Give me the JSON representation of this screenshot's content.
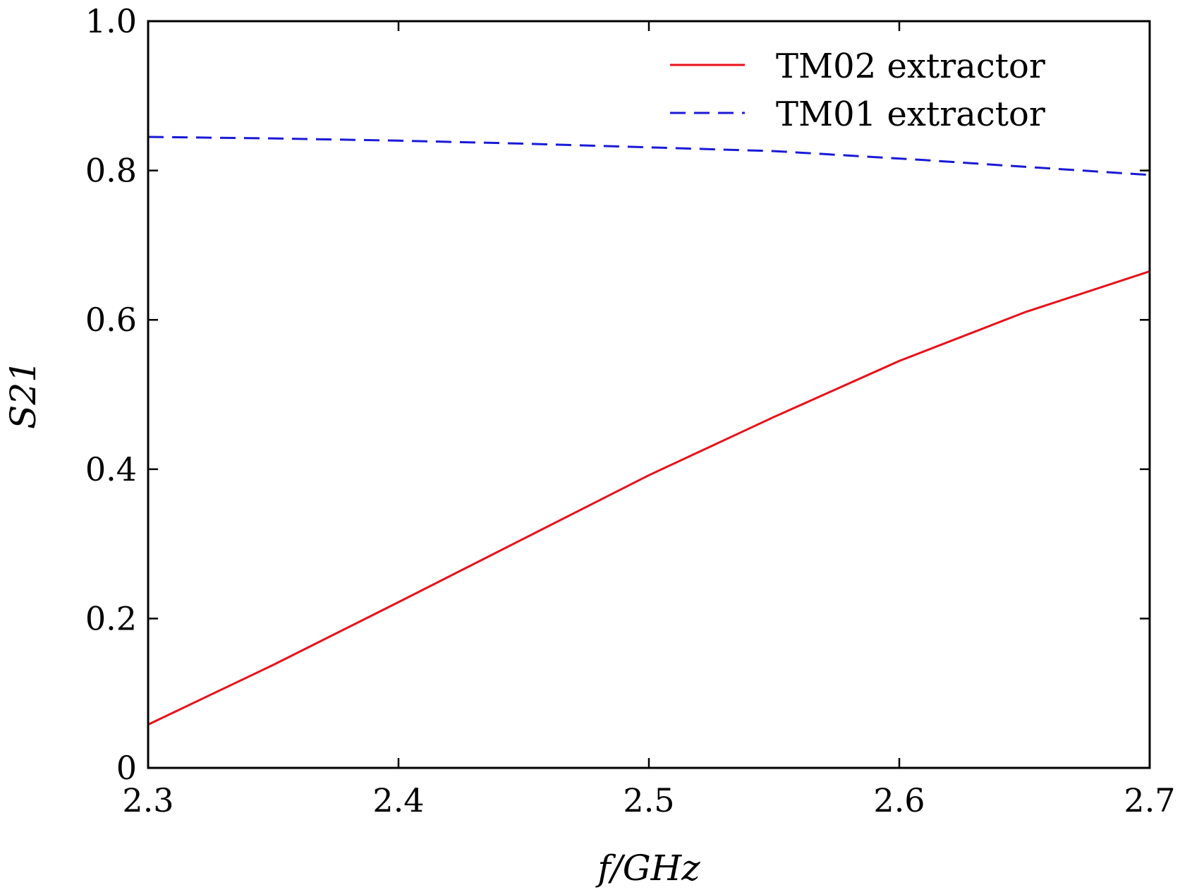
{
  "chart_data": {
    "type": "line",
    "title": "",
    "xlabel": "f/GHz",
    "ylabel": "S21",
    "xlim": [
      2.3,
      2.7
    ],
    "ylim": [
      0,
      1.0
    ],
    "x_ticks": [
      2.3,
      2.4,
      2.5,
      2.6,
      2.7
    ],
    "x_tick_labels": [
      "2.3",
      "2.4",
      "2.5",
      "2.6",
      "2.7"
    ],
    "y_ticks": [
      0,
      0.2,
      0.4,
      0.6,
      0.8,
      1.0
    ],
    "y_tick_labels": [
      "0",
      "0.2",
      "0.4",
      "0.6",
      "0.8",
      "1.0"
    ],
    "grid": false,
    "legend_position": "top-right",
    "series": [
      {
        "name": "TM02 extractor",
        "color": "#e8101a",
        "style": "solid",
        "x": [
          2.3,
          2.35,
          2.4,
          2.45,
          2.5,
          2.55,
          2.6,
          2.65,
          2.7
        ],
        "y": [
          0.058,
          0.138,
          0.222,
          0.307,
          0.392,
          0.47,
          0.545,
          0.61,
          0.665
        ]
      },
      {
        "name": "TM01 extractor",
        "color": "#1a1ad6",
        "style": "dashed",
        "x": [
          2.3,
          2.35,
          2.4,
          2.45,
          2.49,
          2.55,
          2.57,
          2.61,
          2.65,
          2.7
        ],
        "y": [
          0.845,
          0.843,
          0.84,
          0.836,
          0.832,
          0.826,
          0.822,
          0.814,
          0.805,
          0.794
        ]
      }
    ]
  }
}
